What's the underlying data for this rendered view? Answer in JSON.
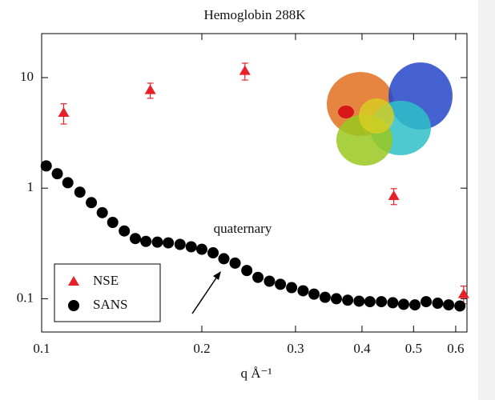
{
  "chart_data": {
    "type": "scatter",
    "title": "Hemoglobin  288K",
    "x_label": "q Å⁻¹",
    "xscale": "log",
    "yscale": "log",
    "xlim": [
      0.1,
      0.63
    ],
    "ylim": [
      0.05,
      25
    ],
    "xticks": [
      0.1,
      0.2,
      0.3,
      0.4,
      0.5,
      0.6
    ],
    "yticks": [
      0.1,
      1,
      10
    ],
    "legend": "lower left",
    "annotation": "quaternary",
    "series": [
      {
        "name": "NSE",
        "color": "#e8202a",
        "marker": "triangle",
        "x": [
          0.11,
          0.16,
          0.241,
          0.459,
          0.621
        ],
        "values": [
          4.8,
          7.7,
          11.5,
          0.85,
          0.11
        ],
        "errors": [
          1.0,
          1.2,
          2.0,
          0.14,
          0.02
        ]
      },
      {
        "name": "SANS",
        "color": "#000000",
        "marker": "circle",
        "x": [
          0.102,
          0.107,
          0.112,
          0.118,
          0.124,
          0.13,
          0.136,
          0.143,
          0.15,
          0.157,
          0.165,
          0.173,
          0.182,
          0.191,
          0.2,
          0.21,
          0.22,
          0.231,
          0.243,
          0.255,
          0.268,
          0.281,
          0.295,
          0.31,
          0.325,
          0.341,
          0.358,
          0.376,
          0.395,
          0.414,
          0.435,
          0.457,
          0.479,
          0.503,
          0.528,
          0.555,
          0.582,
          0.611
        ],
        "values": [
          1.59,
          1.35,
          1.12,
          0.92,
          0.74,
          0.6,
          0.49,
          0.41,
          0.35,
          0.33,
          0.325,
          0.32,
          0.31,
          0.295,
          0.28,
          0.26,
          0.23,
          0.21,
          0.18,
          0.156,
          0.144,
          0.135,
          0.126,
          0.118,
          0.11,
          0.103,
          0.1,
          0.097,
          0.095,
          0.094,
          0.094,
          0.092,
          0.089,
          0.088,
          0.094,
          0.091,
          0.088,
          0.086
        ]
      }
    ]
  }
}
